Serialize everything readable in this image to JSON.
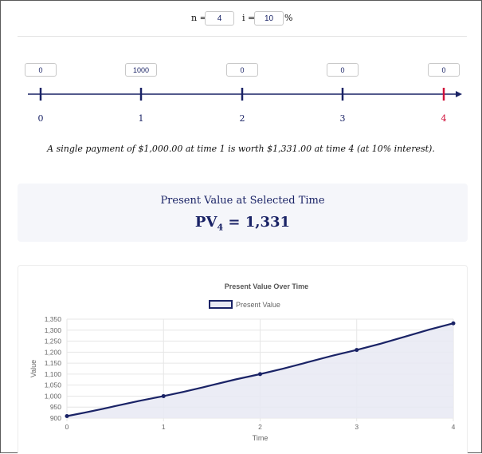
{
  "params": {
    "n_label": "n =",
    "n_value": "4",
    "i_label": "i =",
    "i_value": "10",
    "percent_sign": "%"
  },
  "timeline": {
    "cash_flows": [
      "0",
      "1000",
      "0",
      "0",
      "0"
    ],
    "times": [
      "0",
      "1",
      "2",
      "3",
      "4"
    ],
    "selected_index": 4
  },
  "summary": "A single payment of $1,000.00 at time 1 is worth $1,331.00 at time 4 (at 10% interest).",
  "pv_box": {
    "title": "Present Value at Selected Time",
    "symbol": "PV",
    "subscript": "4",
    "value_text": " = 1,331"
  },
  "colors": {
    "navy": "#1a2366",
    "selected": "#d0103a",
    "fill": "#e8e9f3"
  },
  "chart_data": {
    "type": "area",
    "title": "Present Value Over Time",
    "series": [
      {
        "name": "Present Value",
        "x": [
          0,
          1,
          2,
          3,
          4
        ],
        "values": [
          909.09,
          1000,
          1100,
          1210,
          1331
        ]
      }
    ],
    "xlabel": "Time",
    "ylabel": "Value",
    "x_ticks": [
      "0",
      "1",
      "2",
      "3",
      "4"
    ],
    "y_ticks": [
      "900",
      "950",
      "1,000",
      "1,050",
      "1,100",
      "1,150",
      "1,200",
      "1,250",
      "1,300",
      "1,350"
    ],
    "xlim": [
      0,
      4
    ],
    "ylim": [
      900,
      1350
    ],
    "grid": true,
    "legend": "top"
  }
}
